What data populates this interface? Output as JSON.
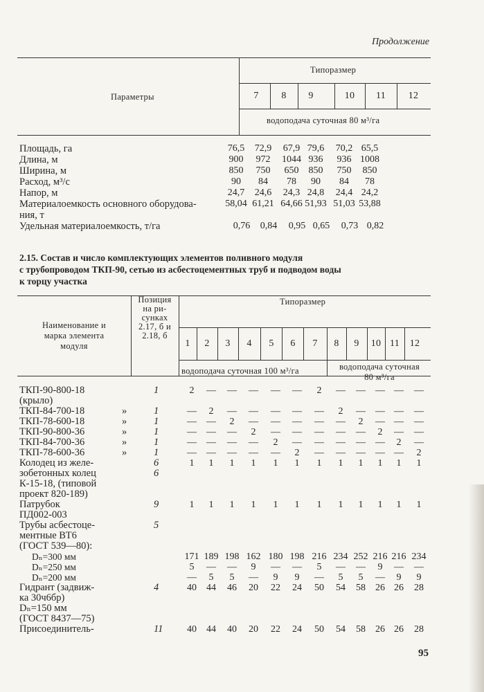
{
  "continuation_label": "Продолжение",
  "table1": {
    "param_header": "Параметры",
    "size_header": "Типоразмер",
    "sizes": [
      "7",
      "8",
      "9",
      "10",
      "11",
      "12"
    ],
    "water_supply": "водоподача суточная 80 м³/га",
    "rows": [
      {
        "lines": [
          "Площадь, га"
        ],
        "values": [
          "76,5",
          "72,9",
          "67,9",
          "79,6",
          "70,2",
          "65,5"
        ]
      },
      {
        "lines": [
          "Длина, м"
        ],
        "values": [
          "900",
          "972",
          "1044",
          "936",
          "936",
          "1008"
        ]
      },
      {
        "lines": [
          "Ширина, м"
        ],
        "values": [
          "850",
          "750",
          "650",
          "850",
          "750",
          "850"
        ]
      },
      {
        "lines": [
          "Расход, м³/с"
        ],
        "values": [
          "90",
          "84",
          "78",
          "90",
          "84",
          "78"
        ]
      },
      {
        "lines": [
          "Напор, м"
        ],
        "values": [
          "24,7",
          "24,6",
          "24,3",
          "24,8",
          "24,4",
          "24,2"
        ]
      },
      {
        "lines": [
          "Материалоемкость основного оборудова-",
          "ния, т"
        ],
        "values": [
          "58,04",
          "61,21",
          "64,66",
          "51,93",
          "51,03",
          "53,88"
        ]
      },
      {
        "lines": [
          "Удельная материалоемкость, т/га"
        ],
        "values": [
          "0,76",
          "0,84",
          "0,95",
          "0,65",
          "0,73",
          "0,82"
        ]
      }
    ]
  },
  "table2": {
    "caption": [
      "2.15. Состав и число комплектующих элементов поливного модуля",
      "с трубопроводом ТКП-90, сетью из асбестоцементных труб и подводом воды",
      "к торцу участка"
    ],
    "name_header": [
      "Наименование и",
      "марка элемента",
      "модуля"
    ],
    "pos_header": [
      "Позиция",
      "на ри-",
      "сунках",
      "2.17, б и",
      "2.18, б"
    ],
    "size_header": "Типоразмер",
    "sizes": [
      "1",
      "2",
      "3",
      "4",
      "5",
      "6",
      "7",
      "8",
      "9",
      "10",
      "11",
      "12"
    ],
    "water_supply_100": "водоподача суточная 100 м³/га",
    "water_supply_80": [
      "водоподача суточная",
      "80 м³/га"
    ],
    "rows": [
      {
        "lines": [
          "ТКП-90-800-18",
          "(крыло)"
        ],
        "ditto": "",
        "pos": "1",
        "values": [
          "2",
          "—",
          "—",
          "—",
          "—",
          "—",
          "2",
          "—",
          "—",
          "—",
          "—",
          "—"
        ]
      },
      {
        "lines": [
          "ТКП-84-700-18"
        ],
        "ditto": "»",
        "pos": "1",
        "values": [
          "—",
          "2",
          "—",
          "—",
          "—",
          "—",
          "—",
          "2",
          "—",
          "—",
          "—",
          "—"
        ]
      },
      {
        "lines": [
          "ТКП-78-600-18"
        ],
        "ditto": "»",
        "pos": "1",
        "values": [
          "—",
          "—",
          "2",
          "—",
          "—",
          "—",
          "—",
          "—",
          "2",
          "—",
          "—",
          "—"
        ]
      },
      {
        "lines": [
          "ТКП-90-800-36"
        ],
        "ditto": "»",
        "pos": "1",
        "values": [
          "—",
          "—",
          "—",
          "2",
          "—",
          "—",
          "—",
          "—",
          "—",
          "2",
          "—",
          "—"
        ]
      },
      {
        "lines": [
          "ТКП-84-700-36"
        ],
        "ditto": "»",
        "pos": "1",
        "values": [
          "—",
          "—",
          "—",
          "—",
          "2",
          "—",
          "—",
          "—",
          "—",
          "—",
          "2",
          "—"
        ]
      },
      {
        "lines": [
          "ТКП-78-600-36"
        ],
        "ditto": "»",
        "pos": "1",
        "values": [
          "—",
          "—",
          "—",
          "—",
          "—",
          "2",
          "—",
          "—",
          "—",
          "—",
          "—",
          "2"
        ]
      },
      {
        "lines": [
          "Колодец из желе-",
          "зобетонных колец",
          "К-15-18, (типовой",
          "проект 820-189)"
        ],
        "ditto": "",
        "pos": "6",
        "pos2": "6",
        "values": [
          "1",
          "1",
          "1",
          "1",
          "1",
          "1",
          "1",
          "1",
          "1",
          "1",
          "1",
          "1"
        ]
      },
      {
        "lines": [
          "Патрубок",
          "ПД002-003"
        ],
        "ditto": "",
        "pos": "9",
        "values": [
          "1",
          "1",
          "1",
          "1",
          "1",
          "1",
          "1",
          "1",
          "1",
          "1",
          "1",
          "1"
        ]
      },
      {
        "lines": [
          "Трубы асбестоце-",
          "ментные ВТ6",
          "(ГОСТ  539—80):"
        ],
        "ditto": "",
        "pos": "5",
        "values": []
      },
      {
        "lines": [
          "Dₙ=300 мм"
        ],
        "indent": true,
        "ditto": "",
        "pos": "",
        "values": [
          "171",
          "189",
          "198",
          "162",
          "180",
          "198",
          "216",
          "234",
          "252",
          "216",
          "216",
          "234"
        ]
      },
      {
        "lines": [
          "Dₙ=250 мм"
        ],
        "indent": true,
        "ditto": "",
        "pos": "",
        "values": [
          "5",
          "—",
          "—",
          "9",
          "—",
          "—",
          "5",
          "—",
          "—",
          "9",
          "—",
          "—"
        ]
      },
      {
        "lines": [
          "Dₙ=200 мм"
        ],
        "indent": true,
        "ditto": "",
        "pos": "",
        "values": [
          "—",
          "5",
          "5",
          "—",
          "9",
          "9",
          "—",
          "5",
          "5",
          "—",
          "9",
          "9"
        ]
      },
      {
        "lines": [
          "Гидрант (задвиж-",
          "ка 30ч6бр)",
          "Dₙ=150 мм",
          "(ГОСТ  8437—75)"
        ],
        "ditto": "",
        "pos": "4",
        "values": [
          "40",
          "44",
          "46",
          "20",
          "22",
          "24",
          "50",
          "54",
          "58",
          "26",
          "26",
          "28"
        ]
      },
      {
        "lines": [
          "Присоединитель-"
        ],
        "ditto": "",
        "pos": "11",
        "values": [
          "40",
          "44",
          "40",
          "20",
          "22",
          "24",
          "50",
          "54",
          "58",
          "26",
          "26",
          "28"
        ]
      }
    ]
  },
  "page_number": "95"
}
